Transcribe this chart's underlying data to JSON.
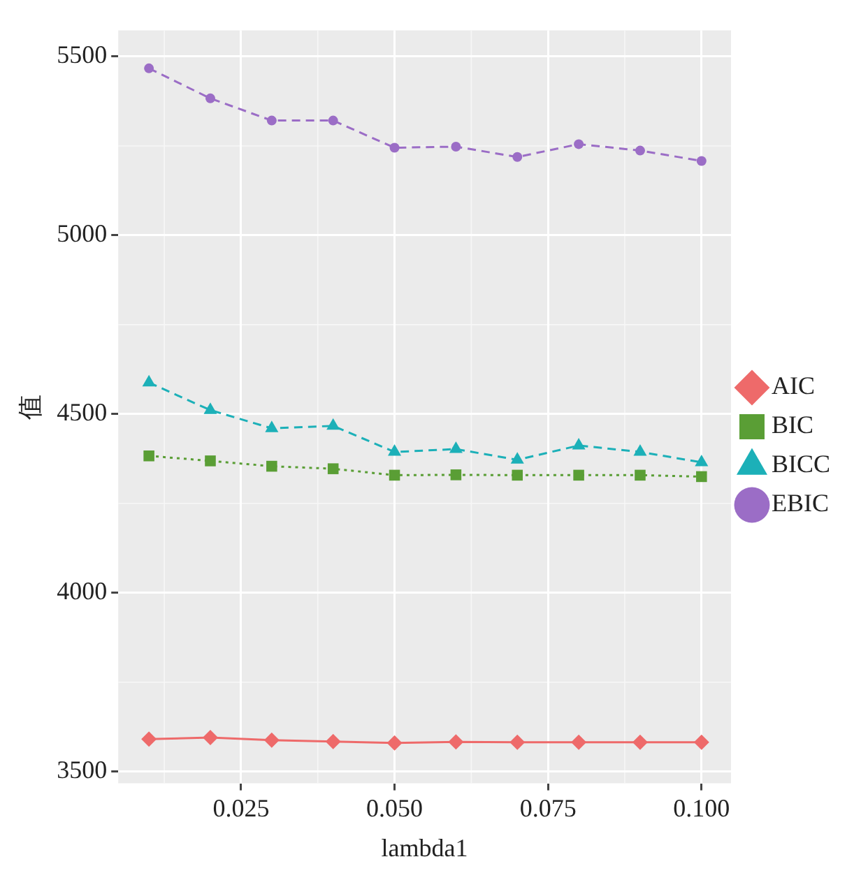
{
  "chart_data": {
    "type": "line",
    "xlabel": "lambda1",
    "ylabel": "值",
    "x": [
      0.01,
      0.02,
      0.03,
      0.04,
      0.05,
      0.06,
      0.07,
      0.08,
      0.09,
      0.1
    ],
    "series": [
      {
        "name": "AIC",
        "color": "#ee6a6a",
        "marker": "diamond",
        "line_style": "solid",
        "values": [
          3591,
          3595,
          3588,
          3584,
          3580,
          3583,
          3582,
          3582,
          3582,
          3582
        ]
      },
      {
        "name": "BIC",
        "color": "#5a9e35",
        "marker": "square",
        "line_style": "dotted",
        "values": [
          4383,
          4369,
          4354,
          4347,
          4329,
          4330,
          4329,
          4329,
          4329,
          4325
        ]
      },
      {
        "name": "BICC",
        "color": "#1cb0b8",
        "marker": "triangle",
        "line_style": "dashed",
        "values": [
          4588,
          4511,
          4460,
          4467,
          4394,
          4402,
          4372,
          4412,
          4394,
          4365
        ]
      },
      {
        "name": "EBIC",
        "color": "#9b6dc6",
        "marker": "circle",
        "line_style": "dashed",
        "values": [
          5467,
          5383,
          5321,
          5321,
          5245,
          5248,
          5219,
          5255,
          5237,
          5208
        ]
      }
    ],
    "xlim": [
      0.005,
      0.1048
    ],
    "xticks": [
      {
        "value": 0.025,
        "label": "0.025"
      },
      {
        "value": 0.05,
        "label": "0.050"
      },
      {
        "value": 0.075,
        "label": "0.075"
      },
      {
        "value": 0.1,
        "label": "0.100"
      }
    ],
    "ylim": [
      3467,
      5573
    ],
    "yticks": [
      3500,
      4000,
      4500,
      5000,
      5500
    ],
    "grid": true,
    "legend": "right"
  }
}
